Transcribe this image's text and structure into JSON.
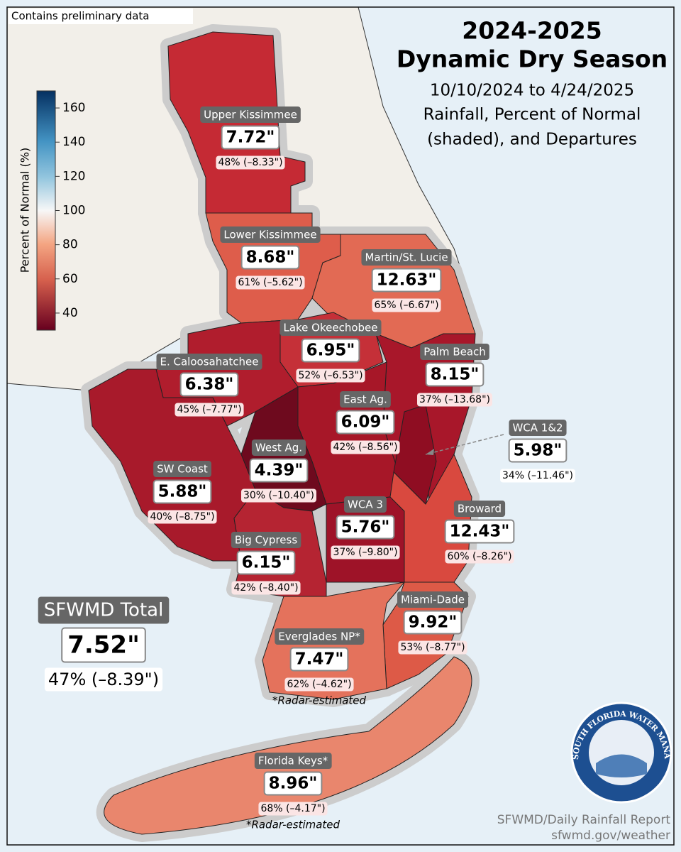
{
  "notice": "Contains preliminary data",
  "title": {
    "line1": "2024-2025",
    "line2": "Dynamic Dry Season",
    "line3": "10/10/2024 to 4/24/2025",
    "line4": "Rainfall, Percent of Normal",
    "line5": "(shaded), and Departures"
  },
  "colorbar": {
    "label": "Percent of Normal (%)",
    "lim": [
      30,
      170
    ],
    "ticks": [
      40,
      60,
      80,
      100,
      120,
      140,
      160
    ]
  },
  "regions": [
    {
      "name": "Upper Kissimmee",
      "total": "7.72\"",
      "detail": "48% (–8.33\")",
      "color": "#c52a34"
    },
    {
      "name": "Lower Kissimmee",
      "total": "8.68\"",
      "detail": "61% (–5.62\")",
      "color": "#de5d4b"
    },
    {
      "name": "Martin/St. Lucie",
      "total": "12.63\"",
      "detail": "65% (–6.67\")",
      "color": "#e26a54"
    },
    {
      "name": "Lake Okeechobee",
      "total": "6.95\"",
      "detail": "52% (–6.53\")",
      "color": "#c53038"
    },
    {
      "name": "Palm Beach",
      "total": "8.15\"",
      "detail": "37% (–13.68\")",
      "color": "#a8172a"
    },
    {
      "name": "E. Caloosahatchee",
      "total": "6.38\"",
      "detail": "45% (–7.77\")",
      "color": "#b01d2d"
    },
    {
      "name": "East Ag.",
      "total": "6.09\"",
      "detail": "42% (–8.56\")",
      "color": "#a71728"
    },
    {
      "name": "WCA 1&2",
      "total": "5.98\"",
      "detail": "34% (–11.46\")",
      "color": "#8f0d22"
    },
    {
      "name": "West Ag.",
      "total": "4.39\"",
      "detail": "30% (–10.40\")",
      "color": "#6e0a1e"
    },
    {
      "name": "SW Coast",
      "total": "5.88\"",
      "detail": "40% (–8.75\")",
      "color": "#a81a2b"
    },
    {
      "name": "WCA 3",
      "total": "5.76\"",
      "detail": "37% (–9.80\")",
      "color": "#9e1328"
    },
    {
      "name": "Broward",
      "total": "12.43\"",
      "detail": "60% (–8.26\")",
      "color": "#d9493f"
    },
    {
      "name": "Big Cypress",
      "total": "6.15\"",
      "detail": "42% (–8.40\")",
      "color": "#b52432"
    },
    {
      "name": "Miami-Dade",
      "total": "9.92\"",
      "detail": "53% (–8.77\")",
      "color": "#dd5a47"
    },
    {
      "name": "Everglades NP*",
      "total": "7.47\"",
      "detail": "62% (–4.62\")",
      "note": "*Radar-estimated",
      "color": "#e4725c"
    },
    {
      "name": "Florida Keys*",
      "total": "8.96\"",
      "detail": "68% (–4.17\")",
      "note": "*Radar-estimated",
      "color": "#e9866d"
    }
  ],
  "district_total": {
    "name": "SFWMD Total",
    "total": "7.52\"",
    "detail": "47% (–8.39\")"
  },
  "footer": {
    "source": "SFWMD/Daily Rainfall Report",
    "url": "sfwmd.gov/weather"
  },
  "logo": {
    "text": "SOUTH FLORIDA WATER MANAGEMENT DISTRICT"
  }
}
